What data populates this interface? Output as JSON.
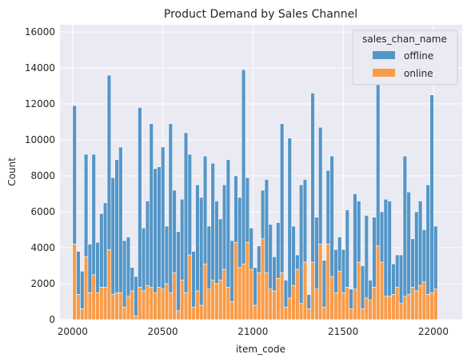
{
  "chart_data": {
    "type": "bar",
    "stacked": true,
    "title": "Product Demand by Sales Channel",
    "xlabel": "item_code",
    "ylabel": "Count",
    "xlim": [
      19930,
      22160
    ],
    "ylim": [
      0,
      16400
    ],
    "xticks": [
      20000,
      20500,
      21000,
      21500,
      22000
    ],
    "yticks": [
      0,
      2000,
      4000,
      6000,
      8000,
      10000,
      12000,
      14000,
      16000
    ],
    "bin_start": 20000,
    "bin_width": 21.3,
    "grid": true,
    "legend": {
      "title": "sales_chan_name",
      "position": "top-right"
    },
    "series": [
      {
        "name": "offline",
        "color": "#5596c7",
        "values": [
          7700,
          2400,
          2100,
          5700,
          2700,
          6700,
          2800,
          4100,
          4700,
          9700,
          6500,
          7400,
          8100,
          3700,
          3300,
          1300,
          2200,
          10000,
          3500,
          4700,
          9100,
          6900,
          6700,
          7900,
          3200,
          9400,
          4600,
          4400,
          4500,
          8900,
          5600,
          3100,
          5900,
          6000,
          6000,
          3500,
          6500,
          4600,
          3400,
          4700,
          7100,
          3400,
          3700,
          3900,
          10800,
          3600,
          2300,
          2100,
          1500,
          2700,
          5200,
          3600,
          1900,
          3100,
          8300,
          1500,
          8900,
          3300,
          800,
          6600,
          4600,
          800,
          9400,
          4000,
          6500,
          2600,
          4100,
          6700,
          2400,
          1900,
          2400,
          4300,
          1100,
          5300,
          3400,
          2400,
          4600,
          1100,
          3900,
          11600,
          2800,
          5400,
          5300,
          1700,
          1800,
          2700,
          7800,
          5700,
          2700,
          4400,
          4700,
          2900,
          6100,
          11000,
          3500
        ]
      },
      {
        "name": "online",
        "color": "#f89c4a",
        "values": [
          4200,
          1400,
          600,
          3500,
          1500,
          2500,
          1500,
          1800,
          1800,
          3900,
          1400,
          1500,
          1500,
          700,
          1300,
          1600,
          200,
          1800,
          1600,
          1900,
          1800,
          1500,
          1800,
          1700,
          2000,
          1500,
          2600,
          500,
          2200,
          1500,
          3600,
          700,
          1600,
          800,
          3100,
          1700,
          2200,
          2000,
          2200,
          2800,
          1800,
          1000,
          4300,
          2900,
          3100,
          4300,
          2800,
          800,
          2600,
          4500,
          2600,
          1700,
          1600,
          2300,
          2600,
          700,
          1200,
          1900,
          2800,
          900,
          3200,
          600,
          3200,
          1700,
          4200,
          700,
          4200,
          2400,
          1500,
          2700,
          1500,
          1800,
          600,
          1700,
          3200,
          600,
          1200,
          1100,
          1800,
          4100,
          3200,
          1300,
          1300,
          1400,
          1800,
          900,
          1300,
          1400,
          1800,
          1600,
          1900,
          2100,
          1400,
          1500,
          1700
        ]
      }
    ]
  }
}
